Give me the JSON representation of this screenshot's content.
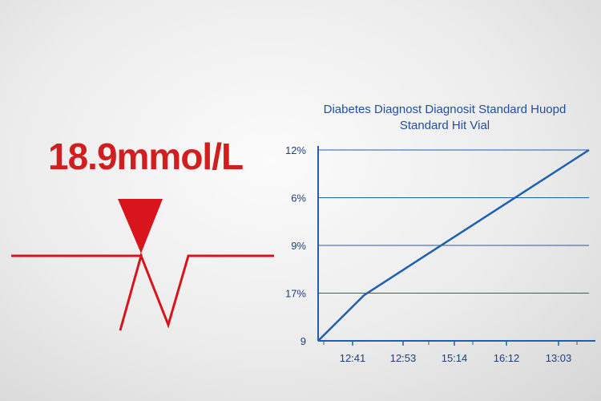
{
  "reading": {
    "value": "18.9mmol/L",
    "color": "#d11f1f"
  },
  "colors": {
    "accent": "#d11f1f",
    "chart_line": "#1f5fb0",
    "axis": "#1f5fb0",
    "text": "#1f4f9e"
  },
  "chart_data": {
    "type": "line",
    "title_line1": "Diabetes Diagnost Diagnosit Standard Huopd",
    "title_line2": "Standard Hit Vial",
    "xlabel": "",
    "ylabel": "",
    "x_ticks": [
      "12:41",
      "12:53",
      "15:14",
      "16:12",
      "13:03"
    ],
    "y_ticks": [
      "12%",
      "6%",
      "9%",
      "17%",
      "9"
    ],
    "grid": true,
    "series": [
      {
        "points": [
          {
            "x": 0.0,
            "y": 0.0
          },
          {
            "x": 0.17,
            "y": 0.24
          },
          {
            "x": 1.0,
            "y": 1.0
          }
        ]
      }
    ]
  }
}
